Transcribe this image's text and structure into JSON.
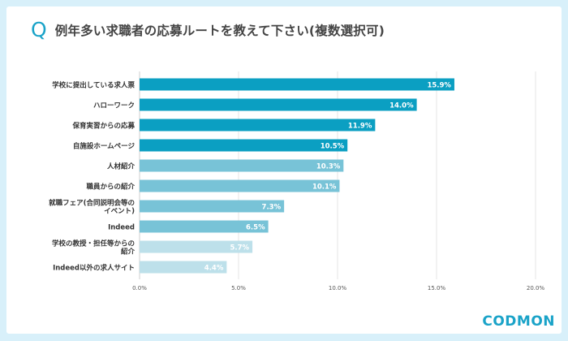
{
  "header": {
    "q_mark": "Q",
    "title": "例年多い求職者の応募ルートを教えて下さい(複数選択可)"
  },
  "logo": {
    "text": "CODMON"
  },
  "colors": {
    "page_bg": "#d8f0fa",
    "accent": "#1aa3c8",
    "bar_dark": "#0b9fc2",
    "bar_mid": "#78c3d7",
    "bar_light": "#bde0ea"
  },
  "chart_data": {
    "type": "bar",
    "orientation": "horizontal",
    "categories": [
      [
        "学校に提出している求人票"
      ],
      [
        "ハローワーク"
      ],
      [
        "保育実習からの応募"
      ],
      [
        "自施設ホームページ"
      ],
      [
        "人材紹介"
      ],
      [
        "職員からの紹介"
      ],
      [
        "就職フェア(合同説明会等の",
        "イベント)"
      ],
      [
        "Indeed"
      ],
      [
        "学校の教授・担任等からの",
        "紹介"
      ],
      [
        "Indeed以外の求人サイト"
      ]
    ],
    "values": [
      15.9,
      14.0,
      11.9,
      10.5,
      10.3,
      10.1,
      7.3,
      6.5,
      5.7,
      4.4
    ],
    "value_labels": [
      "15.9%",
      "14.0%",
      "11.9%",
      "10.5%",
      "10.3%",
      "10.1%",
      "7.3%",
      "6.5%",
      "5.7%",
      "4.4%"
    ],
    "color_groups": [
      "dark",
      "dark",
      "dark",
      "dark",
      "mid",
      "mid",
      "mid",
      "mid",
      "light",
      "light"
    ],
    "xlim": [
      0,
      20
    ],
    "xticks": [
      0,
      5,
      10,
      15,
      20
    ],
    "xtick_labels": [
      "0.0%",
      "5.0%",
      "10.0%",
      "15.0%",
      "20.0%"
    ],
    "grid": true,
    "title": "",
    "xlabel": "",
    "ylabel": ""
  }
}
